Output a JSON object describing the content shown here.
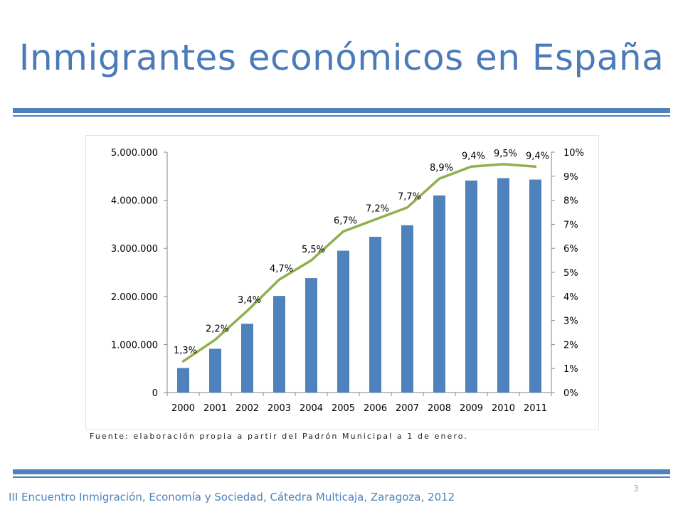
{
  "slide": {
    "title": "Inmigrantes económicos en España",
    "source_note": "Fuente: elaboración propia a partir del Padrón Municipal a 1 de enero.",
    "page_number": "3",
    "footer": "III Encuentro Inmigración, Economía y Sociedad, Cátedra Multicaja, Zaragoza, 2012"
  },
  "colors": {
    "title": "#4a7ab8",
    "bar": "#4f81bd",
    "line": "#8fb04d",
    "rule": "#4f81bd"
  },
  "chart_data": {
    "type": "bar",
    "categories": [
      "2000",
      "2001",
      "2002",
      "2003",
      "2004",
      "2005",
      "2006",
      "2007",
      "2008",
      "2009",
      "2010",
      "2011"
    ],
    "series": [
      {
        "type": "bar",
        "axis": "left",
        "values": [
          510000,
          910000,
          1430000,
          2010000,
          2380000,
          2950000,
          3240000,
          3480000,
          4100000,
          4410000,
          4460000,
          4430000
        ]
      },
      {
        "type": "line",
        "axis": "right",
        "values": [
          1.3,
          2.2,
          3.4,
          4.7,
          5.5,
          6.7,
          7.2,
          7.7,
          8.9,
          9.4,
          9.5,
          9.4
        ],
        "labels": [
          "1,3%",
          "2,2%",
          "3,4%",
          "4,7%",
          "5,5%",
          "6,7%",
          "7,2%",
          "7,7%",
          "8,9%",
          "9,4%",
          "9,5%",
          "9,4%"
        ]
      }
    ],
    "y_left": {
      "range": [
        0,
        5000000
      ],
      "ticks": [
        0,
        1000000,
        2000000,
        3000000,
        4000000,
        5000000
      ],
      "tick_labels": [
        "0",
        "1.000.000",
        "2.000.000",
        "3.000.000",
        "4.000.000",
        "5.000.000"
      ]
    },
    "y_right": {
      "range": [
        0,
        10
      ],
      "ticks": [
        0,
        1,
        2,
        3,
        4,
        5,
        6,
        7,
        8,
        9,
        10
      ],
      "tick_labels": [
        "0%",
        "1%",
        "2%",
        "3%",
        "4%",
        "5%",
        "6%",
        "7%",
        "8%",
        "9%",
        "10%"
      ]
    },
    "grid": false,
    "legend": "none"
  }
}
